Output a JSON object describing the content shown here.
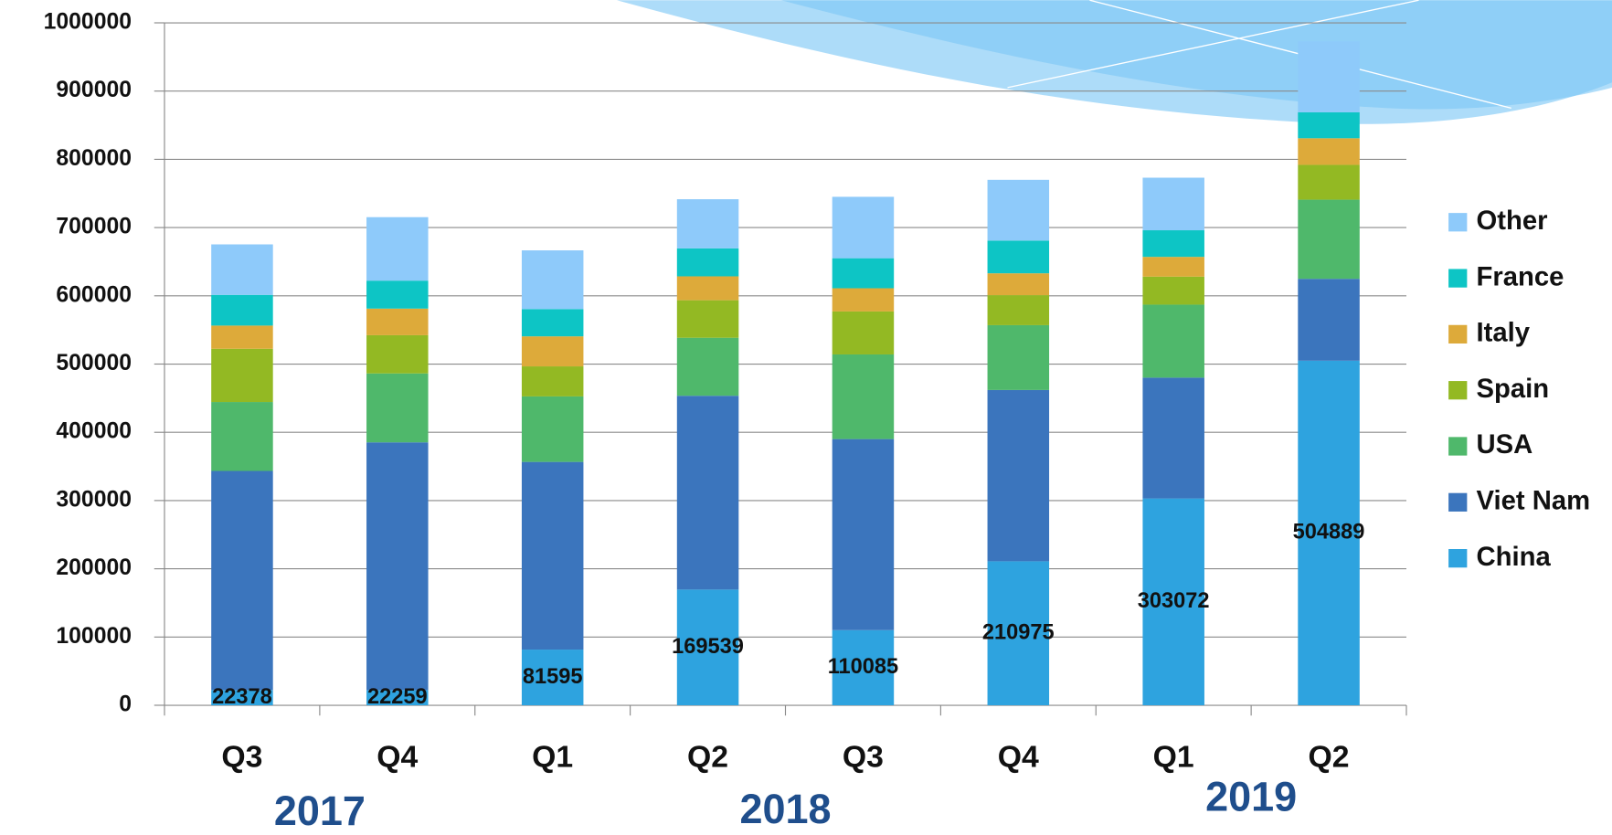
{
  "chart_data": {
    "type": "stacked_bar",
    "categories": [
      "Q3",
      "Q4",
      "Q1",
      "Q2",
      "Q3",
      "Q4",
      "Q1",
      "Q2"
    ],
    "year_labels": [
      "2017",
      "2018",
      "2019"
    ],
    "series": [
      {
        "name": "China",
        "color": "#2ea3df",
        "values": [
          22378,
          22259,
          81595,
          169539,
          110085,
          210975,
          303072,
          504889
        ]
      },
      {
        "name": "Viet Nam",
        "color": "#3b75bd",
        "values": [
          321000,
          363000,
          275000,
          284000,
          280000,
          251000,
          177000,
          120000
        ]
      },
      {
        "name": "USA",
        "color": "#4fb86b",
        "values": [
          101000,
          101000,
          96000,
          85000,
          124000,
          95000,
          107000,
          116000
        ]
      },
      {
        "name": "Spain",
        "color": "#93b923",
        "values": [
          78000,
          56000,
          44000,
          55000,
          63000,
          44000,
          41000,
          51000
        ]
      },
      {
        "name": "Italy",
        "color": "#ddaa3a",
        "values": [
          34000,
          39000,
          44000,
          35000,
          34000,
          32000,
          29000,
          39000
        ]
      },
      {
        "name": "France",
        "color": "#0dc5c5",
        "values": [
          45000,
          41000,
          40000,
          41000,
          44000,
          48000,
          39000,
          38000
        ]
      },
      {
        "name": "Other",
        "color": "#8ecafa",
        "values": [
          74000,
          93000,
          86000,
          72000,
          90000,
          89000,
          77000,
          104000
        ]
      }
    ],
    "labeled_series": 0,
    "ylim": [
      0,
      1000000
    ],
    "yticks": [
      0,
      100000,
      200000,
      300000,
      400000,
      500000,
      600000,
      700000,
      800000,
      900000,
      1000000
    ],
    "grid": true,
    "legend": "right"
  }
}
